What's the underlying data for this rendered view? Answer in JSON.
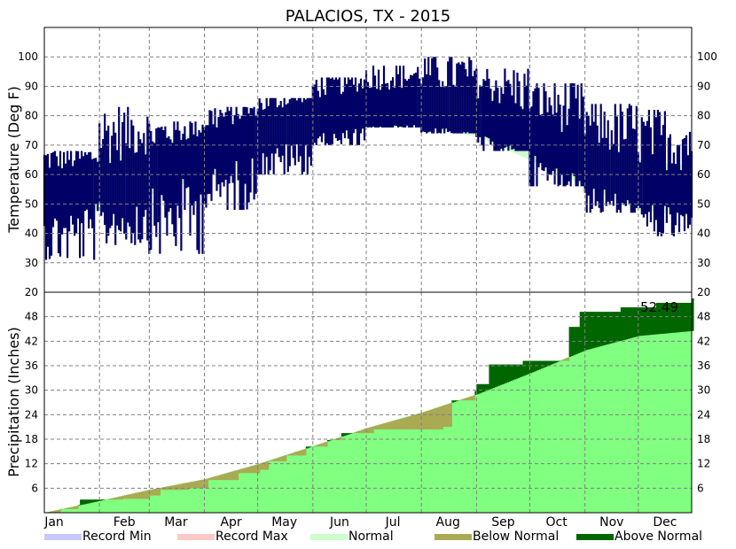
{
  "chart_data": {
    "type": "area",
    "title": "PALACIOS, TX - 2015",
    "months": [
      "Jan",
      "Feb",
      "Mar",
      "Apr",
      "May",
      "Jun",
      "Jul",
      "Aug",
      "Sep",
      "Oct",
      "Nov",
      "Dec"
    ],
    "temperature": {
      "ylabel": "Temperature (Deg F)",
      "ylim": [
        20,
        110
      ],
      "ticks": [
        30,
        40,
        50,
        60,
        70,
        80,
        90,
        100
      ],
      "normal_band": [
        {
          "day": 1,
          "low": 46,
          "high": 63
        },
        {
          "day": 32,
          "low": 48,
          "high": 65
        },
        {
          "day": 60,
          "low": 53,
          "high": 69
        },
        {
          "day": 91,
          "low": 59,
          "high": 75
        },
        {
          "day": 121,
          "low": 67,
          "high": 81
        },
        {
          "day": 152,
          "low": 73,
          "high": 86
        },
        {
          "day": 182,
          "low": 76,
          "high": 89
        },
        {
          "day": 213,
          "low": 76,
          "high": 90
        },
        {
          "day": 244,
          "low": 73,
          "high": 87
        },
        {
          "day": 274,
          "low": 65,
          "high": 82
        },
        {
          "day": 305,
          "low": 56,
          "high": 73
        },
        {
          "day": 335,
          "low": 48,
          "high": 65
        },
        {
          "day": 365,
          "low": 46,
          "high": 63
        }
      ],
      "observed_monthly": [
        {
          "month": "Jan",
          "low": 31,
          "high": 68
        },
        {
          "month": "Feb",
          "low": 36,
          "high": 83
        },
        {
          "month": "Mar",
          "low": 33,
          "high": 78
        },
        {
          "month": "Apr",
          "low": 48,
          "high": 83
        },
        {
          "month": "May",
          "low": 60,
          "high": 86
        },
        {
          "month": "Jun",
          "low": 70,
          "high": 93
        },
        {
          "month": "Jul",
          "low": 76,
          "high": 97
        },
        {
          "month": "Aug",
          "low": 74,
          "high": 100
        },
        {
          "month": "Sep",
          "low": 68,
          "high": 96
        },
        {
          "month": "Oct",
          "low": 56,
          "high": 91
        },
        {
          "month": "Nov",
          "low": 47,
          "high": 84
        },
        {
          "month": "Dec",
          "low": 39,
          "high": 82
        }
      ]
    },
    "precipitation": {
      "ylabel": "Precipitation (Inches)",
      "ylim": [
        0,
        54
      ],
      "ticks": [
        6,
        12,
        18,
        24,
        30,
        36,
        42,
        48
      ],
      "total_label": "52.49",
      "normal_cumulative": [
        {
          "day": 1,
          "value": 0.0
        },
        {
          "day": 32,
          "value": 2.9
        },
        {
          "day": 60,
          "value": 5.6
        },
        {
          "day": 91,
          "value": 8.2
        },
        {
          "day": 121,
          "value": 11.9
        },
        {
          "day": 152,
          "value": 16.3
        },
        {
          "day": 182,
          "value": 20.7
        },
        {
          "day": 213,
          "value": 24.5
        },
        {
          "day": 244,
          "value": 29.0
        },
        {
          "day": 274,
          "value": 34.2
        },
        {
          "day": 305,
          "value": 39.8
        },
        {
          "day": 335,
          "value": 43.3
        },
        {
          "day": 365,
          "value": 44.5
        }
      ],
      "observed_cumulative": [
        {
          "day": 1,
          "value": 0.0
        },
        {
          "day": 10,
          "value": 0.9
        },
        {
          "day": 20,
          "value": 1.9
        },
        {
          "day": 21,
          "value": 3.2
        },
        {
          "day": 45,
          "value": 3.4
        },
        {
          "day": 60,
          "value": 4.2
        },
        {
          "day": 66,
          "value": 5.6
        },
        {
          "day": 82,
          "value": 6.0
        },
        {
          "day": 93,
          "value": 8.0
        },
        {
          "day": 110,
          "value": 9.7
        },
        {
          "day": 122,
          "value": 10.5
        },
        {
          "day": 127,
          "value": 12.6
        },
        {
          "day": 137,
          "value": 14.0
        },
        {
          "day": 148,
          "value": 16.2
        },
        {
          "day": 160,
          "value": 17.8
        },
        {
          "day": 168,
          "value": 19.5
        },
        {
          "day": 186,
          "value": 20.4
        },
        {
          "day": 225,
          "value": 21.0
        },
        {
          "day": 230,
          "value": 27.5
        },
        {
          "day": 243,
          "value": 29.8
        },
        {
          "day": 244,
          "value": 31.5
        },
        {
          "day": 251,
          "value": 36.3
        },
        {
          "day": 270,
          "value": 37.2
        },
        {
          "day": 295,
          "value": 37.2
        },
        {
          "day": 296,
          "value": 45.5
        },
        {
          "day": 302,
          "value": 49.2
        },
        {
          "day": 325,
          "value": 50.3
        },
        {
          "day": 345,
          "value": 51.4
        },
        {
          "day": 365,
          "value": 52.49
        }
      ]
    },
    "legend": [
      {
        "label": "Record Min",
        "color": "#c8c8ff"
      },
      {
        "label": "Record Max",
        "color": "#ffc8c8"
      },
      {
        "label": "Normal",
        "color": "#ccffcc"
      },
      {
        "label": "Below Normal",
        "color": "#aaaa55"
      },
      {
        "label": "Above Normal",
        "color": "#006600"
      }
    ],
    "colors": {
      "observed_temp": "#000066",
      "normal_temp": "#ccffcc",
      "normal_precip": "#80ff80",
      "above_normal": "#006600",
      "below_normal": "#aaaa55"
    },
    "grid": true
  }
}
